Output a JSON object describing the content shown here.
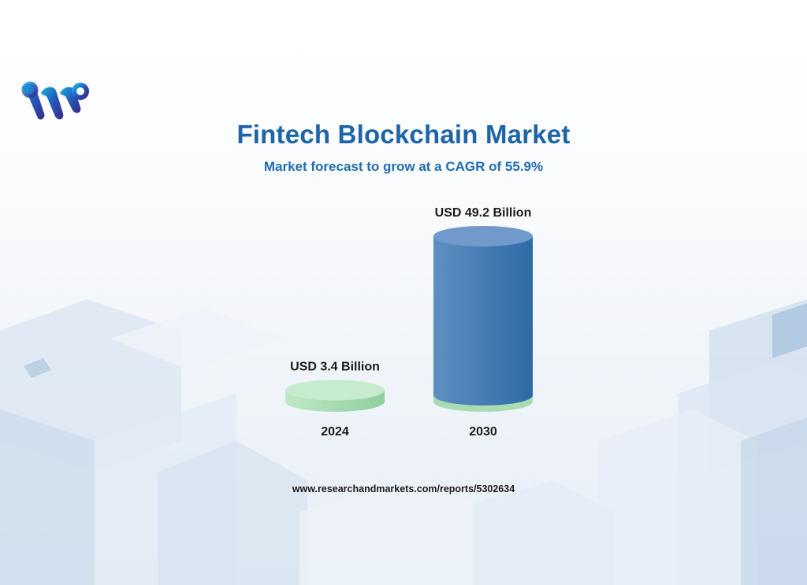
{
  "title": "Fintech Blockchain Market",
  "subtitle": "Market forecast to grow at a CAGR of 55.9%",
  "footer_url": "www.researchandmarkets.com/reports/5302634",
  "logo_icon": "w-chain-logo-icon",
  "colors": {
    "title": "#1d64a8",
    "bar_2030": "#3c74ad",
    "bar_2024": "#9fd9ad",
    "label": "#1b1b1b"
  },
  "chart_data": {
    "type": "bar",
    "categories": [
      "2024",
      "2030"
    ],
    "values": [
      3.4,
      49.2
    ],
    "value_labels": [
      "USD 3.4 Billion",
      "USD 49.2 Billion"
    ],
    "unit": "USD Billion",
    "title": "Fintech Blockchain Market",
    "subtitle": "Market forecast to grow at a CAGR of 55.9%",
    "xlabel": "",
    "ylabel": "",
    "ylim": [
      0,
      49.2
    ],
    "grid": false,
    "legend": "none"
  }
}
